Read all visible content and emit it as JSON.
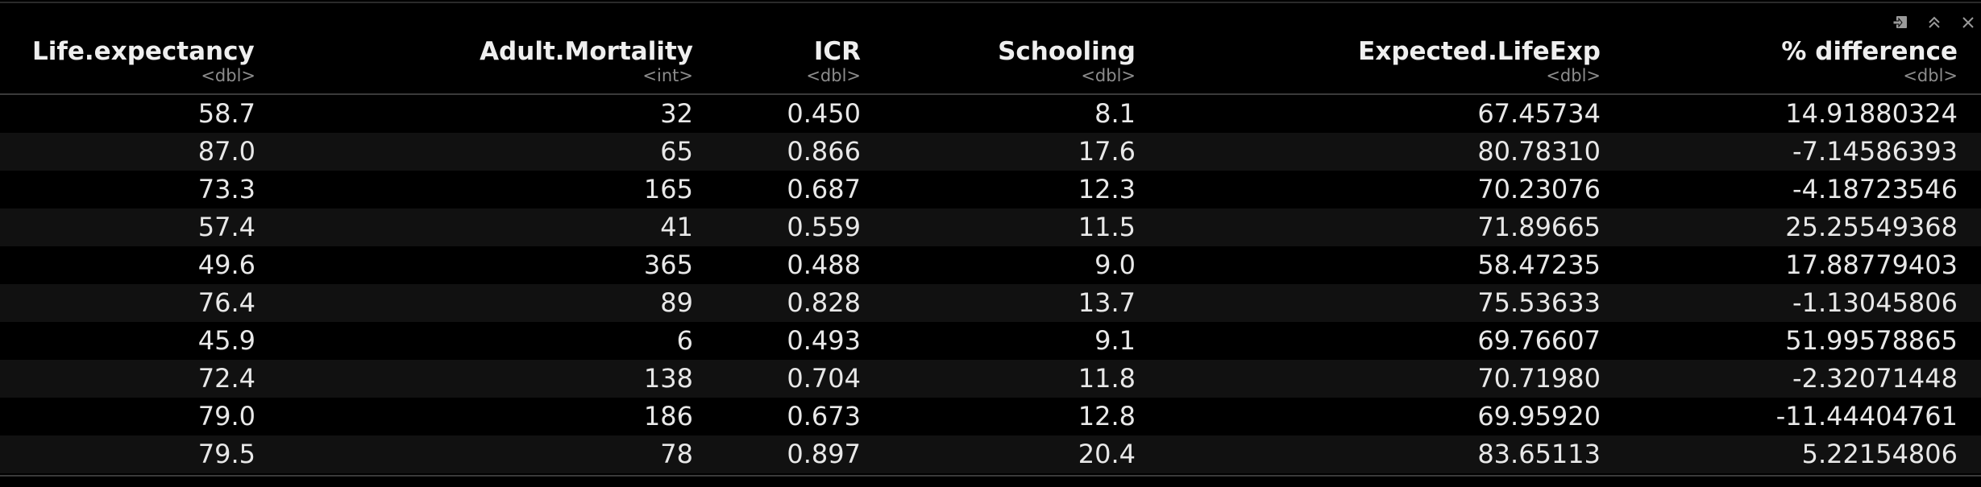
{
  "toolbar": {
    "icons": [
      "export-icon",
      "collapse-icon",
      "close-icon"
    ]
  },
  "columns": [
    {
      "name": "Life.expectancy",
      "type": "<dbl>"
    },
    {
      "name": "Adult.Mortality",
      "type": "<int>"
    },
    {
      "name": "ICR",
      "type": "<dbl>"
    },
    {
      "name": "Schooling",
      "type": "<dbl>"
    },
    {
      "name": "Expected.LifeExp",
      "type": "<dbl>"
    },
    {
      "name": "% difference",
      "type": "<dbl>"
    }
  ],
  "rows": [
    [
      "58.7",
      "32",
      "0.450",
      "8.1",
      "67.45734",
      "14.91880324"
    ],
    [
      "87.0",
      "65",
      "0.866",
      "17.6",
      "80.78310",
      "-7.14586393"
    ],
    [
      "73.3",
      "165",
      "0.687",
      "12.3",
      "70.23076",
      "-4.18723546"
    ],
    [
      "57.4",
      "41",
      "0.559",
      "11.5",
      "71.89665",
      "25.25549368"
    ],
    [
      "49.6",
      "365",
      "0.488",
      "9.0",
      "58.47235",
      "17.88779403"
    ],
    [
      "76.4",
      "89",
      "0.828",
      "13.7",
      "75.53633",
      "-1.13045806"
    ],
    [
      "45.9",
      "6",
      "0.493",
      "9.1",
      "69.76607",
      "51.99578865"
    ],
    [
      "72.4",
      "138",
      "0.704",
      "11.8",
      "70.71980",
      "-2.32071448"
    ],
    [
      "79.0",
      "186",
      "0.673",
      "12.8",
      "69.95920",
      "-11.44404761"
    ],
    [
      "79.5",
      "78",
      "0.897",
      "20.4",
      "83.65113",
      "5.22154806"
    ]
  ],
  "colors": {
    "background": "#000000",
    "row_alt": "#111111",
    "text": "#e8e8e8",
    "type_text": "#8c8c8c"
  }
}
